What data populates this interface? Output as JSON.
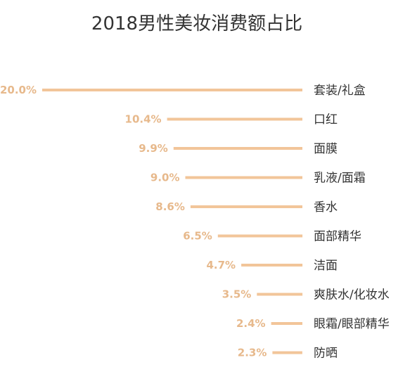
{
  "chart_data": {
    "type": "bar",
    "orientation": "horizontal",
    "title": "2018男性美妆消费额占比",
    "categories": [
      "套装/礼盒",
      "口红",
      "面膜",
      "乳液/面霜",
      "香水",
      "面部精华",
      "洁面",
      "爽肤水/化妆水",
      "眼霜/眼部精华",
      "防晒"
    ],
    "values": [
      20.0,
      10.4,
      9.9,
      9.0,
      8.6,
      6.5,
      4.7,
      3.5,
      2.4,
      2.3
    ],
    "value_labels": [
      "20.0%",
      "10.4%",
      "9.9%",
      "9.0%",
      "8.6%",
      "6.5%",
      "4.7%",
      "3.5%",
      "2.4%",
      "2.3%"
    ],
    "bar_color": "#f2c599",
    "label_color": "#e7b98c",
    "text_color": "#333333",
    "grid": false,
    "legend": "none"
  }
}
